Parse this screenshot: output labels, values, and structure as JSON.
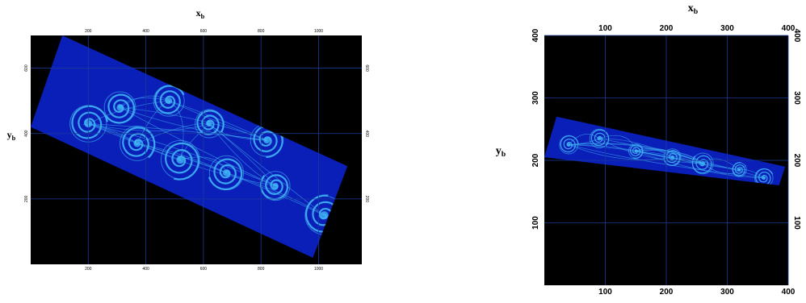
{
  "chart_data": [
    {
      "type": "heatmap",
      "panel": "left",
      "xlabel": "x",
      "xlabel_sub": "b",
      "ylabel": "y",
      "ylabel_sub": "b",
      "xlim": [
        0,
        1150
      ],
      "ylim": [
        700,
        0
      ],
      "x_ticks": [
        200,
        400,
        600,
        800,
        1000
      ],
      "y_ticks": [
        200,
        400,
        600
      ],
      "x_tick_labels": [
        "200",
        "400",
        "600",
        "800",
        "1000"
      ],
      "y_tick_labels": [
        "200",
        "400",
        "600"
      ],
      "grid": true,
      "background": "#000000",
      "field_color": "#0a1fb8",
      "filament_color": "#3fb4f5",
      "domain_corners": [
        [
          0,
          420
        ],
        [
          980,
          20
        ],
        [
          1100,
          300
        ],
        [
          110,
          700
        ]
      ],
      "vortex_centers": [
        [
          200,
          430
        ],
        [
          370,
          370
        ],
        [
          520,
          320
        ],
        [
          680,
          280
        ],
        [
          850,
          240
        ],
        [
          1020,
          150
        ],
        [
          480,
          500
        ],
        [
          620,
          430
        ],
        [
          820,
          380
        ],
        [
          310,
          480
        ]
      ]
    },
    {
      "type": "heatmap",
      "panel": "right",
      "xlabel": "x",
      "xlabel_sub": "b",
      "ylabel": "y",
      "ylabel_sub": "b",
      "xlim": [
        0,
        400
      ],
      "ylim": [
        400,
        0
      ],
      "x_ticks": [
        100,
        200,
        300,
        400
      ],
      "y_ticks": [
        100,
        200,
        300,
        400
      ],
      "x_tick_labels": [
        "100",
        "200",
        "300",
        "400"
      ],
      "y_tick_labels": [
        "100",
        "200",
        "300",
        "400"
      ],
      "grid": true,
      "background": "#000000",
      "field_color": "#0a1fb8",
      "filament_color": "#3fb4f5",
      "domain_corners": [
        [
          0,
          205
        ],
        [
          385,
          160
        ],
        [
          395,
          190
        ],
        [
          20,
          270
        ]
      ],
      "vortex_centers": [
        [
          40,
          225
        ],
        [
          90,
          235
        ],
        [
          150,
          215
        ],
        [
          210,
          205
        ],
        [
          260,
          195
        ],
        [
          320,
          185
        ],
        [
          360,
          172
        ]
      ]
    }
  ]
}
